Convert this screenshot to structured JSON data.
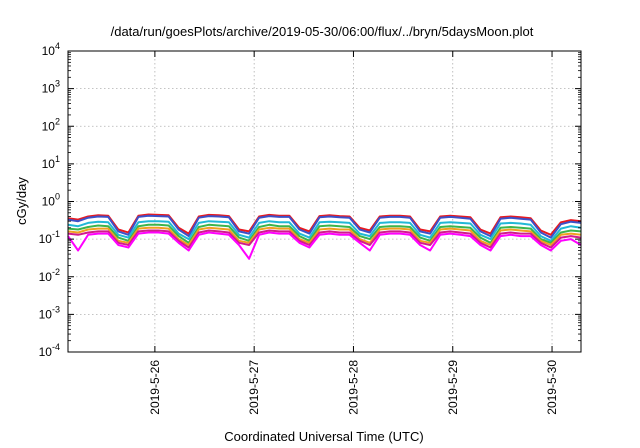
{
  "chart_data": {
    "type": "line",
    "title": "/data/run/goesPlots/archive/2019-05-30/06:00/flux/../bryn/5daysMoon.plot",
    "xlabel": "Coordinated Universal Time (UTC)",
    "ylabel": "cGy/day",
    "x_range": [
      "2019-05-25 03:00",
      "2019-05-30 07:00"
    ],
    "x_ticks": [
      "2019-5-26",
      "2019-5-27",
      "2019-5-28",
      "2019-5-29",
      "2019-5-30"
    ],
    "y_scale": "log",
    "ylim": [
      0.0001,
      10000
    ],
    "y_ticks": [
      {
        "base": "10",
        "exp": "4"
      },
      {
        "base": "10",
        "exp": "3"
      },
      {
        "base": "10",
        "exp": "2"
      },
      {
        "base": "10",
        "exp": "1"
      },
      {
        "base": "10",
        "exp": "0"
      },
      {
        "base": "10",
        "exp": "-1"
      },
      {
        "base": "10",
        "exp": "-2"
      },
      {
        "base": "10",
        "exp": "-3"
      },
      {
        "base": "10",
        "exp": "-4"
      }
    ],
    "grid": true,
    "series": [
      {
        "color": "#e8191f",
        "values": [
          0.36,
          0.33,
          0.4,
          0.43,
          0.42,
          0.18,
          0.15,
          0.42,
          0.45,
          0.44,
          0.43,
          0.2,
          0.14,
          0.4,
          0.44,
          0.43,
          0.41,
          0.18,
          0.16,
          0.4,
          0.44,
          0.42,
          0.42,
          0.2,
          0.16,
          0.41,
          0.43,
          0.41,
          0.4,
          0.2,
          0.17,
          0.4,
          0.42,
          0.42,
          0.4,
          0.18,
          0.16,
          0.4,
          0.42,
          0.4,
          0.38,
          0.18,
          0.14,
          0.38,
          0.4,
          0.38,
          0.36,
          0.17,
          0.13,
          0.28,
          0.32,
          0.3
        ]
      },
      {
        "color": "#3d50c8",
        "values": [
          0.33,
          0.3,
          0.37,
          0.4,
          0.39,
          0.16,
          0.13,
          0.39,
          0.42,
          0.41,
          0.4,
          0.18,
          0.12,
          0.37,
          0.41,
          0.4,
          0.38,
          0.16,
          0.14,
          0.37,
          0.41,
          0.39,
          0.39,
          0.18,
          0.14,
          0.38,
          0.4,
          0.38,
          0.37,
          0.18,
          0.15,
          0.37,
          0.39,
          0.39,
          0.37,
          0.16,
          0.14,
          0.37,
          0.39,
          0.37,
          0.35,
          0.16,
          0.12,
          0.35,
          0.37,
          0.35,
          0.33,
          0.15,
          0.11,
          0.25,
          0.29,
          0.27
        ]
      },
      {
        "color": "#21b8d6",
        "values": [
          0.24,
          0.22,
          0.27,
          0.29,
          0.28,
          0.13,
          0.11,
          0.28,
          0.3,
          0.3,
          0.29,
          0.14,
          0.1,
          0.27,
          0.3,
          0.29,
          0.28,
          0.13,
          0.11,
          0.27,
          0.3,
          0.28,
          0.28,
          0.14,
          0.11,
          0.28,
          0.29,
          0.28,
          0.27,
          0.14,
          0.12,
          0.27,
          0.28,
          0.28,
          0.27,
          0.13,
          0.11,
          0.27,
          0.28,
          0.27,
          0.26,
          0.13,
          0.1,
          0.26,
          0.27,
          0.26,
          0.24,
          0.12,
          0.09,
          0.19,
          0.22,
          0.2
        ]
      },
      {
        "color": "#3cb44b",
        "values": [
          0.19,
          0.18,
          0.21,
          0.23,
          0.22,
          0.11,
          0.09,
          0.22,
          0.24,
          0.24,
          0.23,
          0.12,
          0.08,
          0.21,
          0.24,
          0.23,
          0.22,
          0.11,
          0.09,
          0.21,
          0.24,
          0.22,
          0.22,
          0.12,
          0.09,
          0.22,
          0.23,
          0.22,
          0.21,
          0.12,
          0.1,
          0.21,
          0.22,
          0.22,
          0.21,
          0.11,
          0.09,
          0.21,
          0.22,
          0.21,
          0.2,
          0.11,
          0.08,
          0.2,
          0.21,
          0.2,
          0.19,
          0.1,
          0.08,
          0.15,
          0.17,
          0.16
        ]
      },
      {
        "color": "#f0a020",
        "values": [
          0.16,
          0.15,
          0.18,
          0.19,
          0.19,
          0.09,
          0.08,
          0.19,
          0.2,
          0.2,
          0.19,
          0.1,
          0.07,
          0.18,
          0.2,
          0.19,
          0.18,
          0.09,
          0.08,
          0.18,
          0.2,
          0.19,
          0.19,
          0.1,
          0.08,
          0.18,
          0.19,
          0.18,
          0.18,
          0.1,
          0.08,
          0.18,
          0.19,
          0.19,
          0.18,
          0.09,
          0.08,
          0.18,
          0.19,
          0.18,
          0.17,
          0.09,
          0.07,
          0.17,
          0.18,
          0.17,
          0.16,
          0.09,
          0.07,
          0.13,
          0.14,
          0.13
        ]
      },
      {
        "color": "#d01c8b",
        "values": [
          0.14,
          0.13,
          0.15,
          0.16,
          0.16,
          0.08,
          0.07,
          0.16,
          0.17,
          0.17,
          0.16,
          0.09,
          0.06,
          0.15,
          0.17,
          0.16,
          0.15,
          0.08,
          0.07,
          0.15,
          0.17,
          0.16,
          0.16,
          0.09,
          0.07,
          0.15,
          0.16,
          0.15,
          0.15,
          0.09,
          0.07,
          0.15,
          0.16,
          0.16,
          0.15,
          0.08,
          0.07,
          0.15,
          0.16,
          0.15,
          0.14,
          0.08,
          0.06,
          0.14,
          0.15,
          0.14,
          0.14,
          0.08,
          0.06,
          0.11,
          0.12,
          0.11
        ]
      },
      {
        "color": "#ff00ff",
        "values": [
          0.12,
          0.05,
          0.13,
          0.14,
          0.14,
          0.07,
          0.06,
          0.14,
          0.15,
          0.15,
          0.14,
          0.08,
          0.05,
          0.13,
          0.15,
          0.14,
          0.13,
          0.07,
          0.03,
          0.13,
          0.15,
          0.14,
          0.14,
          0.08,
          0.06,
          0.13,
          0.14,
          0.13,
          0.13,
          0.08,
          0.05,
          0.13,
          0.14,
          0.14,
          0.13,
          0.07,
          0.05,
          0.13,
          0.14,
          0.13,
          0.12,
          0.07,
          0.05,
          0.12,
          0.13,
          0.12,
          0.12,
          0.07,
          0.05,
          0.09,
          0.1,
          0.07
        ]
      }
    ]
  }
}
